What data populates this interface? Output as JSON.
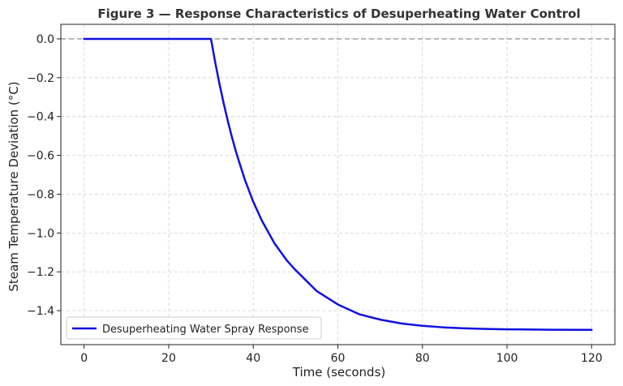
{
  "chart_data": {
    "type": "line",
    "title": "Figure 3 — Response Characteristics of Desuperheating Water Control",
    "xlabel": "Time (seconds)",
    "ylabel": "Steam Temperature Deviation (°C)",
    "xlim": [
      -5.5,
      125.5
    ],
    "ylim": [
      -1.575,
      0.075
    ],
    "xticks": [
      0,
      20,
      40,
      60,
      80,
      100,
      120
    ],
    "yticks": [
      0.0,
      -0.2,
      -0.4,
      -0.6,
      -0.8,
      -1.0,
      -1.2,
      -1.4
    ],
    "grid": true,
    "legend_position": "lower-left",
    "reference_line": {
      "y": 0.0,
      "style": "dashed",
      "color": "#808080"
    },
    "series": [
      {
        "name": "Desuperheating Water Spray Response",
        "color": "#1010e0",
        "x": [
          0,
          10,
          20,
          30,
          31,
          32,
          33,
          34,
          35,
          36,
          38,
          40,
          42,
          45,
          48,
          50,
          55,
          60,
          65,
          70,
          75,
          80,
          85,
          90,
          95,
          100,
          110,
          120
        ],
        "y": [
          0,
          0,
          0,
          0,
          -0.121,
          -0.231,
          -0.332,
          -0.425,
          -0.51,
          -0.588,
          -0.725,
          -0.839,
          -0.935,
          -1.053,
          -1.143,
          -1.191,
          -1.299,
          -1.368,
          -1.418,
          -1.446,
          -1.466,
          -1.478,
          -1.486,
          -1.491,
          -1.494,
          -1.496,
          -1.498,
          -1.499
        ]
      }
    ]
  }
}
